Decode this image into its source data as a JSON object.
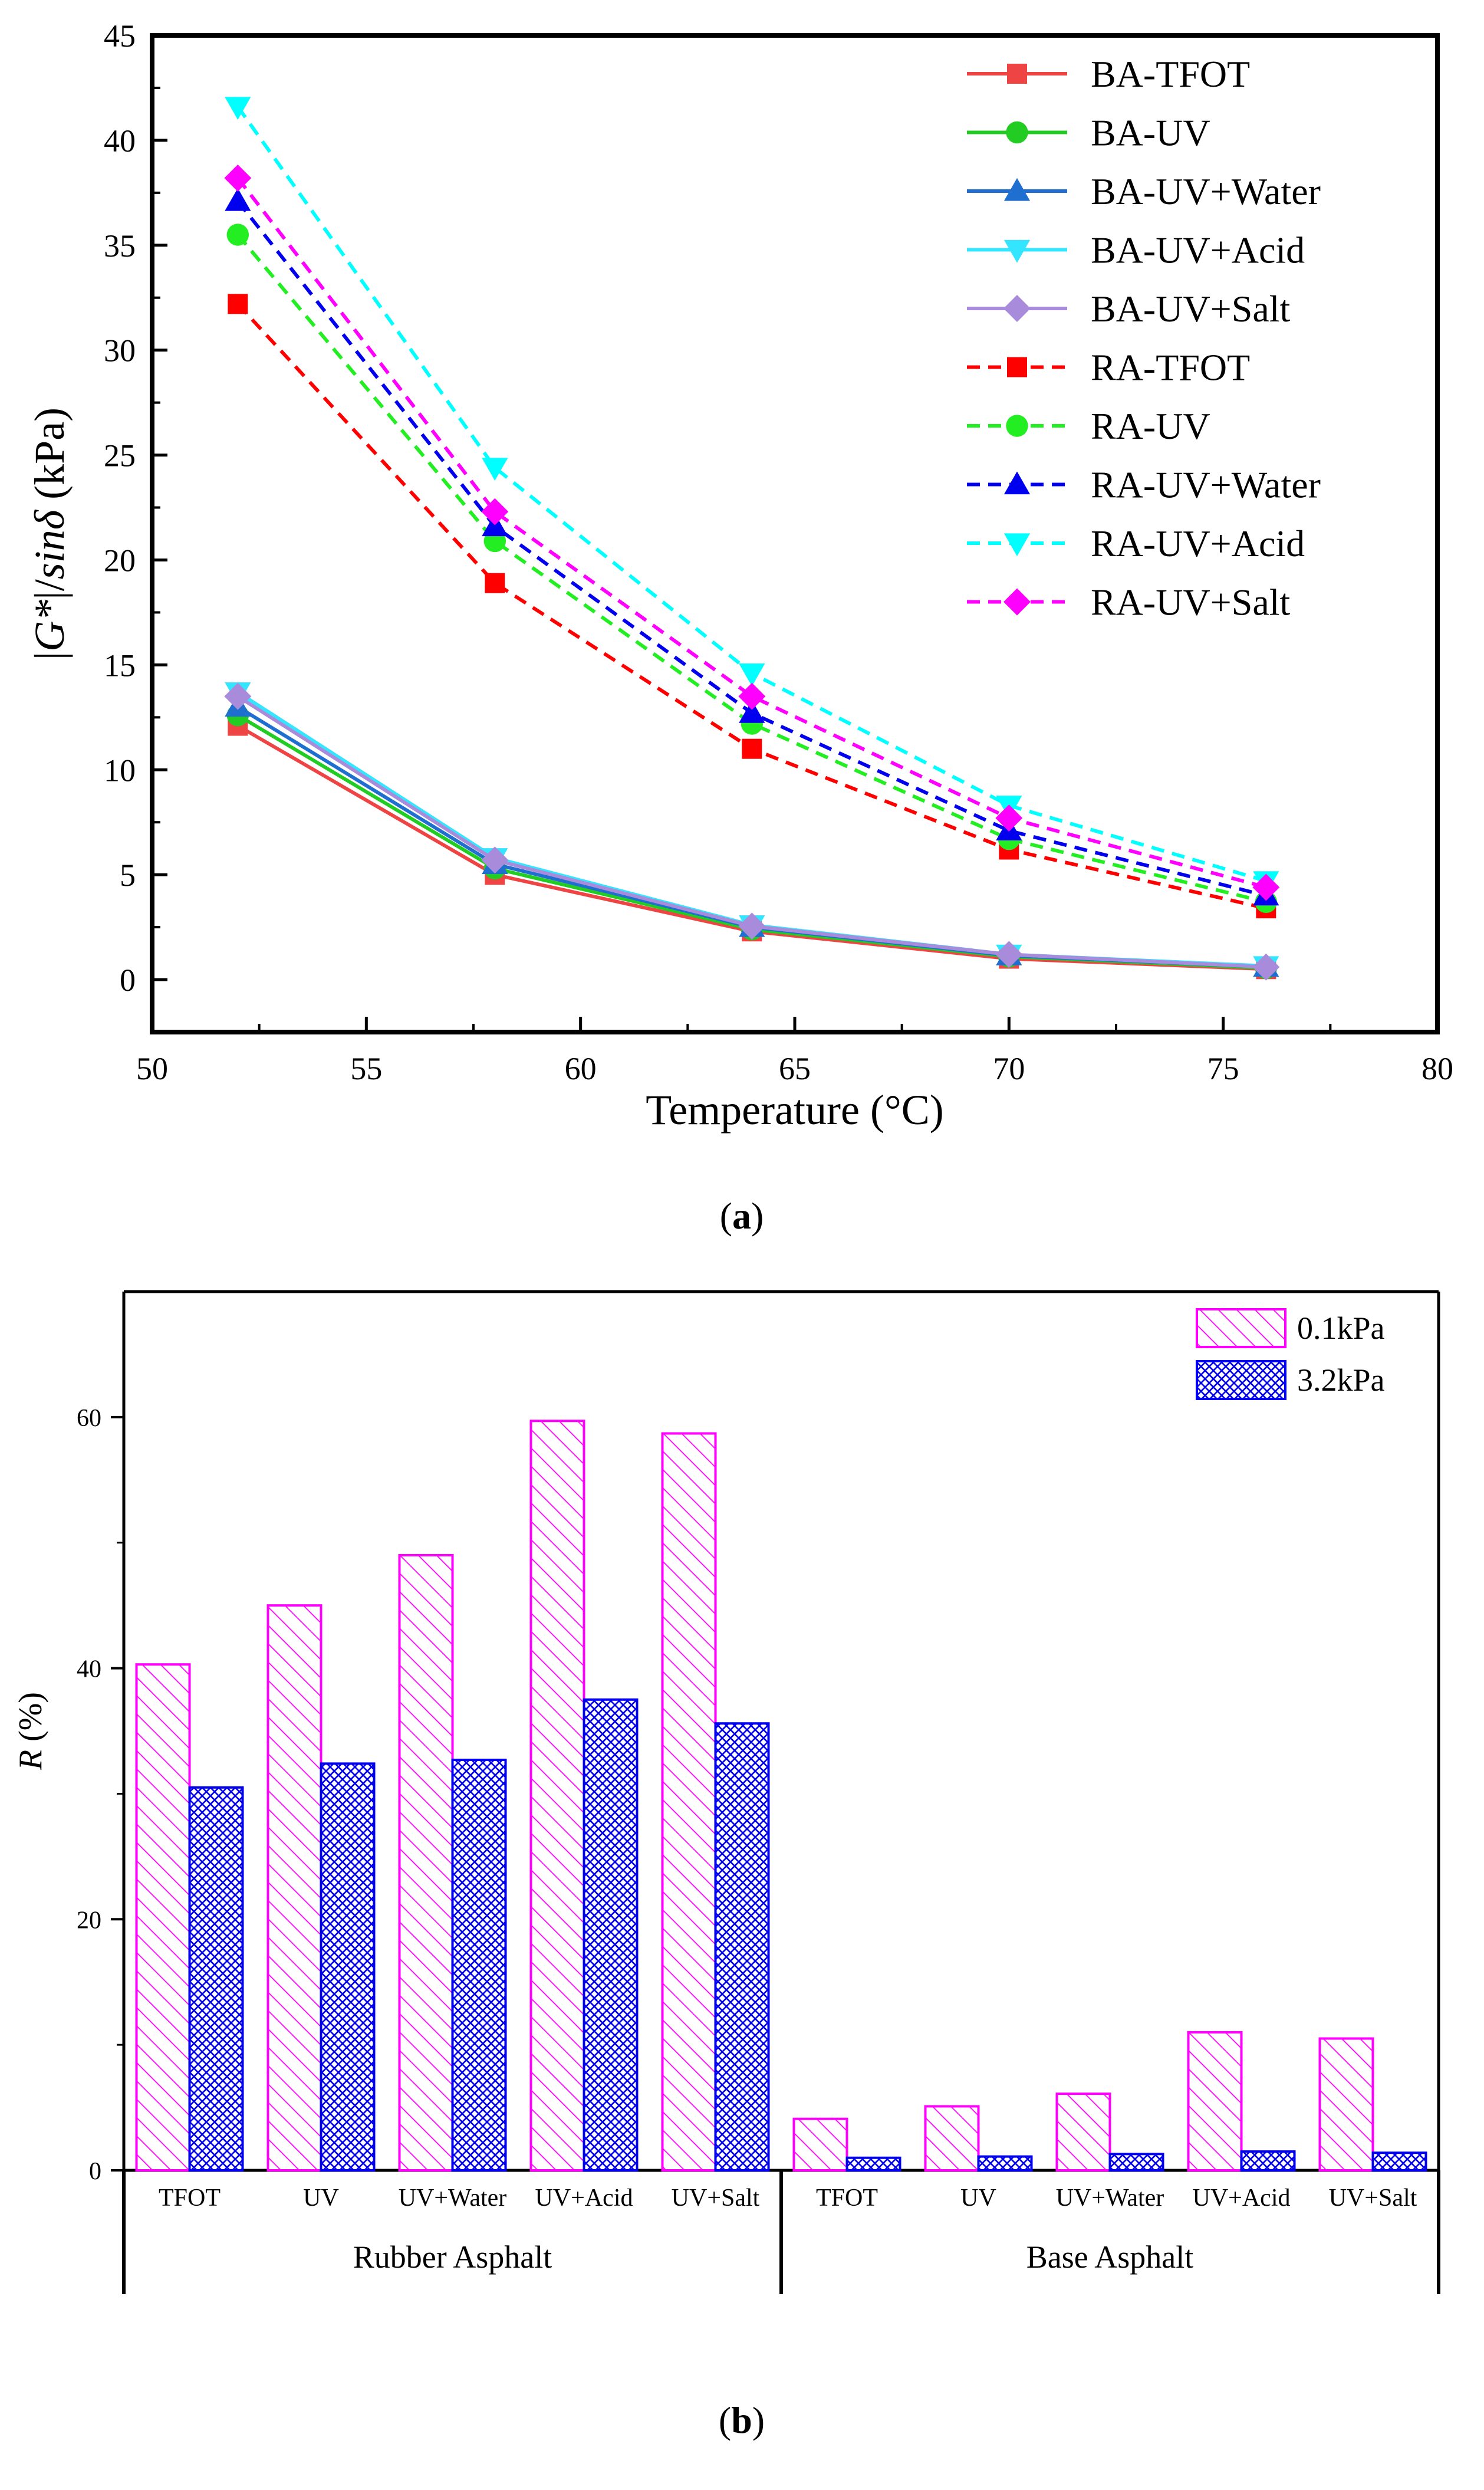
{
  "chart_data": [
    {
      "type": "line",
      "panel_label": "a",
      "xlabel": "Temperature (°C)",
      "ylabel": "|G*|/sinδ (kPa)",
      "xlim": [
        50,
        80
      ],
      "ylim": [
        -2.5,
        45
      ],
      "xticks": [
        50,
        55,
        60,
        65,
        70,
        75,
        80
      ],
      "yticks": [
        0,
        5,
        10,
        15,
        20,
        25,
        30,
        35,
        40,
        45
      ],
      "x": [
        52,
        58,
        64,
        70,
        76
      ],
      "legend_position": "top-right",
      "series": [
        {
          "name": "BA-TFOT",
          "values": [
            12.1,
            5.0,
            2.3,
            1.0,
            0.5
          ],
          "color": "#ef4444",
          "marker": "square",
          "dash": "solid"
        },
        {
          "name": "BA-UV",
          "values": [
            12.6,
            5.3,
            2.4,
            1.1,
            0.55
          ],
          "color": "#22cc22",
          "marker": "circle",
          "dash": "solid"
        },
        {
          "name": "BA-UV+Water",
          "values": [
            13.0,
            5.5,
            2.5,
            1.15,
            0.6
          ],
          "color": "#1f6fd0",
          "marker": "triangle-up",
          "dash": "solid"
        },
        {
          "name": "BA-UV+Acid",
          "values": [
            13.7,
            5.8,
            2.6,
            1.2,
            0.65
          ],
          "color": "#33e5ff",
          "marker": "triangle-down",
          "dash": "solid"
        },
        {
          "name": "BA-UV+Salt",
          "values": [
            13.5,
            5.7,
            2.55,
            1.2,
            0.6
          ],
          "color": "#a98bdc",
          "marker": "diamond",
          "dash": "solid"
        },
        {
          "name": "RA-TFOT",
          "values": [
            32.2,
            18.9,
            11.0,
            6.2,
            3.4
          ],
          "color": "#ff0000",
          "marker": "square",
          "dash": "dash"
        },
        {
          "name": "RA-UV",
          "values": [
            35.5,
            20.9,
            12.2,
            6.7,
            3.7
          ],
          "color": "#22ee22",
          "marker": "circle",
          "dash": "dash"
        },
        {
          "name": "RA-UV+Water",
          "values": [
            37.1,
            21.6,
            12.7,
            7.1,
            4.0
          ],
          "color": "#0000ee",
          "marker": "triangle-up",
          "dash": "dash"
        },
        {
          "name": "RA-UV+Acid",
          "values": [
            41.6,
            24.4,
            14.6,
            8.3,
            4.7
          ],
          "color": "#00ffff",
          "marker": "triangle-down",
          "dash": "dash"
        },
        {
          "name": "RA-UV+Salt",
          "values": [
            38.2,
            22.3,
            13.5,
            7.7,
            4.4
          ],
          "color": "#ff00ff",
          "marker": "diamond",
          "dash": "dash"
        }
      ]
    },
    {
      "type": "bar",
      "panel_label": "b",
      "ylabel": "R (%)",
      "ylim": [
        0,
        70
      ],
      "yticks": [
        0,
        20,
        40,
        60
      ],
      "groups": [
        "Rubber Asphalt",
        "Base Asphalt"
      ],
      "categories": [
        "TFOT",
        "UV",
        "UV+Water",
        "UV+Acid",
        "UV+Salt",
        "TFOT",
        "UV",
        "UV+Water",
        "UV+Acid",
        "UV+Salt"
      ],
      "legend_position": "top-right",
      "series": [
        {
          "name": "0.1kPa",
          "values": [
            40.3,
            45.0,
            49.0,
            59.7,
            58.7,
            4.1,
            5.1,
            6.1,
            11.0,
            10.5
          ],
          "color": "#ff00ff",
          "pattern": "diagonal-hatch"
        },
        {
          "name": "3.2kPa",
          "values": [
            30.5,
            32.4,
            32.7,
            37.5,
            35.6,
            1.0,
            1.1,
            1.3,
            1.5,
            1.4
          ],
          "color": "#0000ee",
          "pattern": "cross-hatch"
        }
      ]
    }
  ]
}
